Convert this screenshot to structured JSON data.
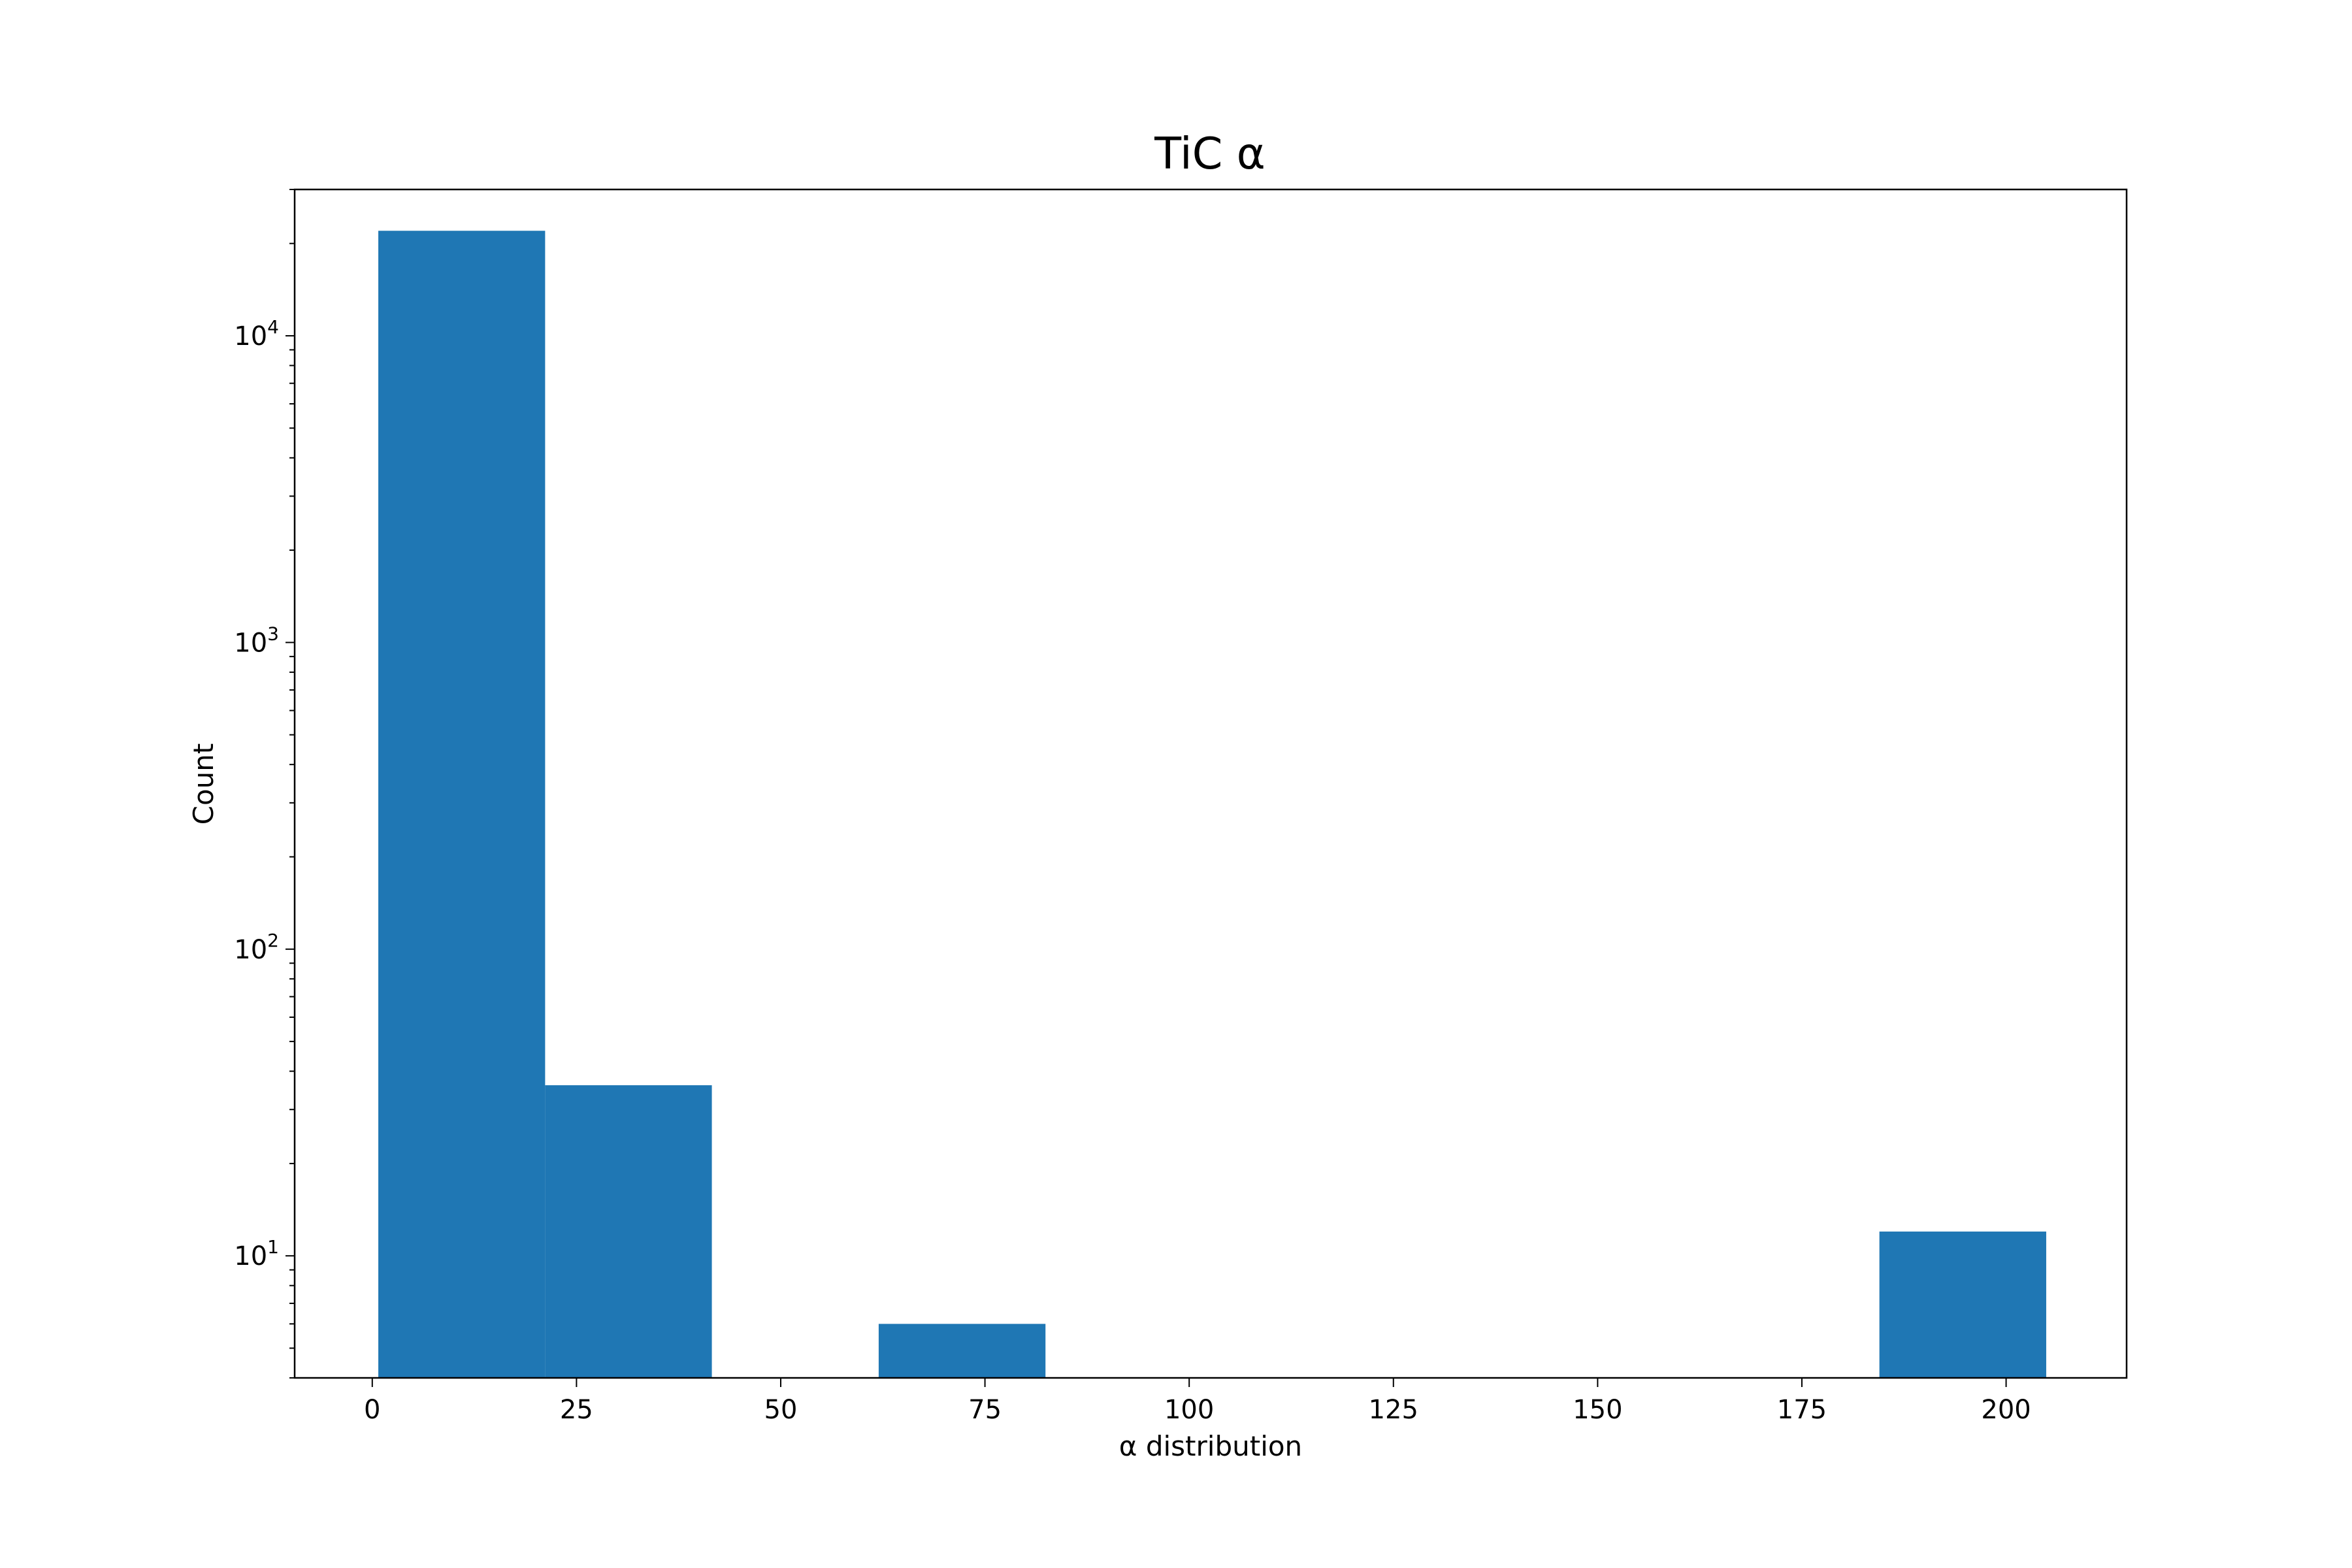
{
  "chart_data": {
    "type": "bar",
    "title": "TiC α",
    "xlabel": "α distribution",
    "ylabel": "Count",
    "y_scale": "log",
    "ylim": [
      4,
      30000
    ],
    "xlim": [
      -9.5,
      214.75
    ],
    "bar_color": "#1f77b4",
    "bins": [
      {
        "x0": 0.74,
        "x1": 21.16,
        "count": 22000
      },
      {
        "x0": 21.16,
        "x1": 41.57,
        "count": 36
      },
      {
        "x0": 41.57,
        "x1": 61.99,
        "count": 0
      },
      {
        "x0": 61.99,
        "x1": 82.41,
        "count": 6
      },
      {
        "x0": 82.41,
        "x1": 102.82,
        "count": 0
      },
      {
        "x0": 102.82,
        "x1": 123.24,
        "count": 0
      },
      {
        "x0": 123.24,
        "x1": 143.66,
        "count": 0
      },
      {
        "x0": 143.66,
        "x1": 164.08,
        "count": 0
      },
      {
        "x0": 164.08,
        "x1": 184.49,
        "count": 0
      },
      {
        "x0": 184.49,
        "x1": 204.91,
        "count": 12
      }
    ],
    "x_ticks": [
      {
        "value": 0,
        "label": "0"
      },
      {
        "value": 25,
        "label": "25"
      },
      {
        "value": 50,
        "label": "50"
      },
      {
        "value": 75,
        "label": "75"
      },
      {
        "value": 100,
        "label": "100"
      },
      {
        "value": 125,
        "label": "125"
      },
      {
        "value": 150,
        "label": "150"
      },
      {
        "value": 175,
        "label": "175"
      },
      {
        "value": 200,
        "label": "200"
      }
    ],
    "y_ticks": [
      {
        "value": 10,
        "base": "10",
        "exp": "1"
      },
      {
        "value": 100,
        "base": "10",
        "exp": "2"
      },
      {
        "value": 1000,
        "base": "10",
        "exp": "3"
      },
      {
        "value": 10000,
        "base": "10",
        "exp": "4"
      }
    ],
    "grid": false,
    "legend": "none"
  }
}
